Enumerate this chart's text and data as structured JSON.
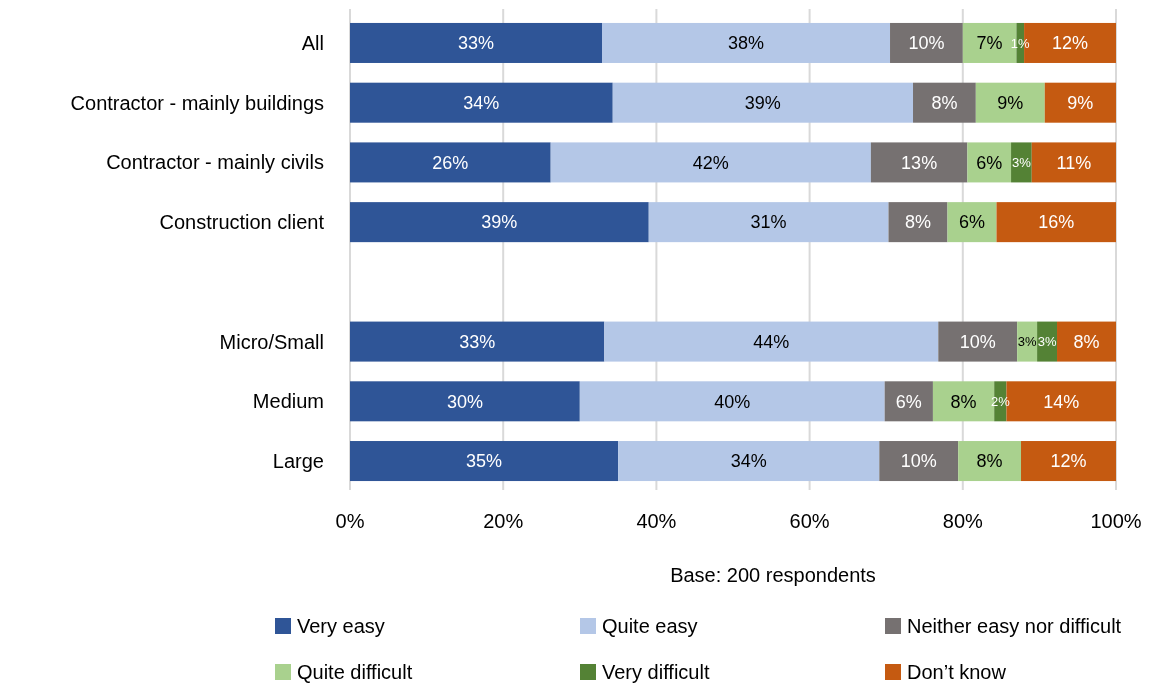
{
  "chart_data": {
    "type": "bar",
    "orientation": "horizontal",
    "stacked": true,
    "categories": [
      "All",
      "Contractor - mainly buildings",
      "Contractor - mainly civils",
      "Construction client",
      null,
      "Micro/Small",
      "Medium",
      "Large"
    ],
    "series": [
      {
        "name": "Very easy",
        "color": "#2f5597",
        "values": [
          32.9,
          34.3,
          26.2,
          39.0,
          null,
          33.2,
          30.0,
          35.0
        ],
        "value_labels": [
          "33%",
          "34%",
          "26%",
          "39%",
          null,
          "33%",
          "30%",
          "35%"
        ]
      },
      {
        "name": "Quite easy",
        "color": "#b4c7e7",
        "values": [
          37.6,
          39.2,
          41.8,
          31.3,
          null,
          43.6,
          39.8,
          34.1
        ],
        "value_labels": [
          "38%",
          "39%",
          "42%",
          "31%",
          null,
          "44%",
          "40%",
          "34%"
        ]
      },
      {
        "name": "Neither easy nor difficult",
        "color": "#767171",
        "values": [
          9.5,
          8.2,
          12.6,
          7.7,
          null,
          10.3,
          6.3,
          10.3
        ],
        "value_labels": [
          "10%",
          "8%",
          "13%",
          "8%",
          null,
          "10%",
          "6%",
          "10%"
        ]
      },
      {
        "name": "Quite difficult",
        "color": "#a9d18e",
        "values": [
          7.0,
          9.0,
          5.7,
          6.4,
          null,
          2.6,
          8.0,
          8.2
        ],
        "value_labels": [
          "7%",
          "9%",
          "6%",
          "6%",
          null,
          "3%",
          "8%",
          "8%"
        ]
      },
      {
        "name": "Very difficult",
        "color": "#548235",
        "values": [
          1.0,
          null,
          2.7,
          null,
          null,
          2.6,
          1.6,
          null
        ],
        "value_labels": [
          "1%",
          null,
          "3%",
          null,
          null,
          "3%",
          "2%",
          null
        ]
      },
      {
        "name": "Don’t know",
        "color": "#c55a11",
        "values": [
          12.0,
          9.3,
          11.0,
          15.6,
          null,
          7.7,
          14.3,
          12.4
        ],
        "value_labels": [
          "12%",
          "9%",
          "11%",
          "16%",
          null,
          "8%",
          "14%",
          "12%"
        ]
      }
    ],
    "xlim": [
      0,
      100
    ],
    "xticks": [
      {
        "value": 0,
        "label": "0%"
      },
      {
        "value": 20,
        "label": "20%"
      },
      {
        "value": 40,
        "label": "40%"
      },
      {
        "value": 60,
        "label": "60%"
      },
      {
        "value": 80,
        "label": "80%"
      },
      {
        "value": 100,
        "label": "100%"
      }
    ],
    "xlabel": "Base: 200 respondents",
    "grid": "x",
    "legend": "bottom"
  }
}
